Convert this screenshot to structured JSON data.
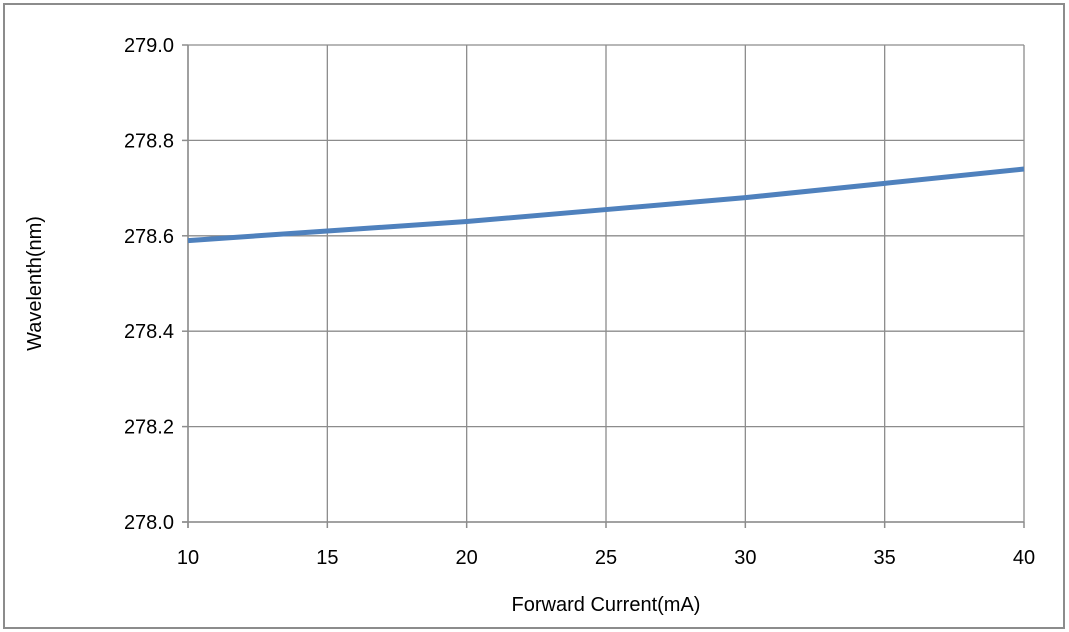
{
  "chart_data": {
    "type": "line",
    "title": "",
    "xlabel": "Forward Current(mA)",
    "ylabel": "Wavelenth(nm)",
    "xlim": [
      10,
      40
    ],
    "ylim": [
      278.0,
      279.0
    ],
    "x_ticks": [
      10,
      15,
      20,
      25,
      30,
      35,
      40
    ],
    "x_tick_labels": [
      "10",
      "15",
      "20",
      "25",
      "30",
      "35",
      "40"
    ],
    "y_ticks": [
      278.0,
      278.2,
      278.4,
      278.6,
      278.8,
      279.0
    ],
    "y_tick_labels": [
      "278.0",
      "278.2",
      "278.4",
      "278.6",
      "278.8",
      "279.0"
    ],
    "grid": true,
    "legend": "none",
    "series": [
      {
        "color": "#4f81bd",
        "x": [
          10,
          15,
          20,
          25,
          30,
          35,
          40
        ],
        "y": [
          278.59,
          278.61,
          278.63,
          278.655,
          278.68,
          278.71,
          278.74
        ]
      }
    ]
  }
}
